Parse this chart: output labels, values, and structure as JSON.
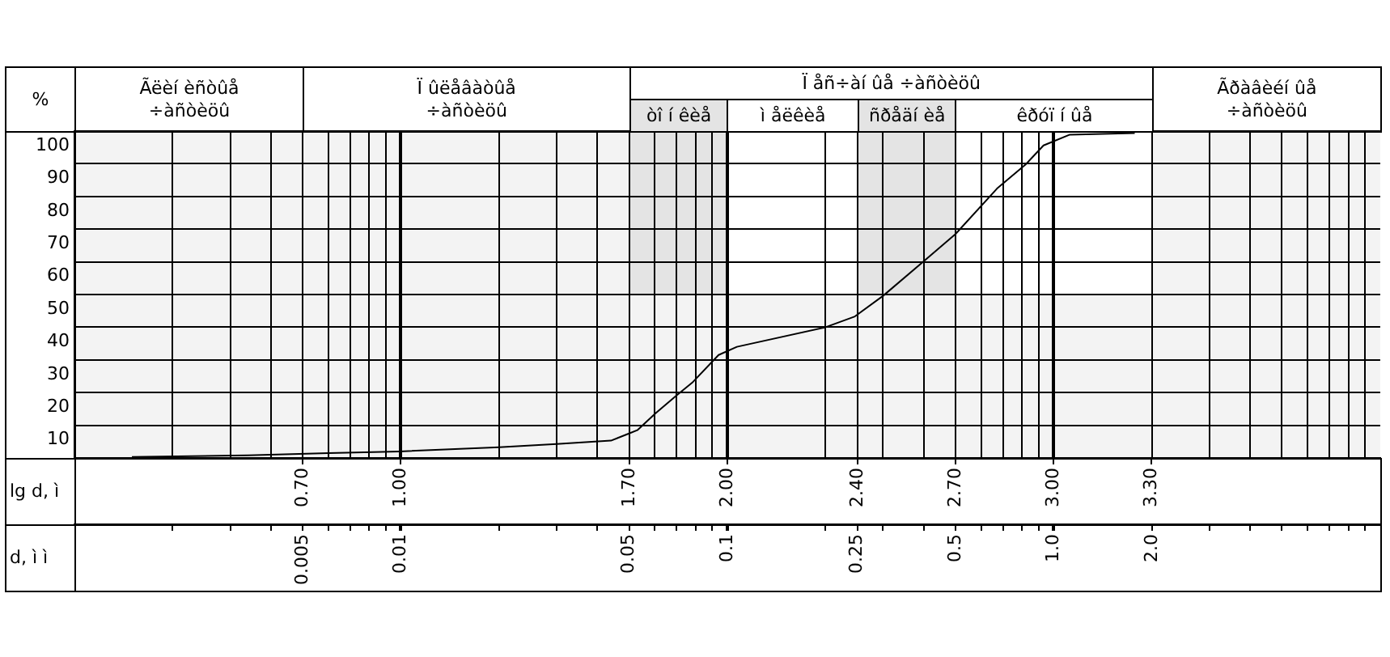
{
  "chart_data": {
    "type": "line",
    "ylabel": "%",
    "xlabel": "d, ì ì",
    "x2label": "lg d, ì",
    "x": [
      0.0015,
      0.0034,
      0.006,
      0.0099,
      0.02,
      0.03,
      0.044,
      0.05,
      0.053,
      0.06,
      0.07,
      0.078,
      0.094,
      0.107,
      0.2,
      0.246,
      0.3,
      0.4,
      0.5,
      0.67,
      0.82,
      0.93,
      1.12,
      1.77
    ],
    "series": [
      {
        "color": "#000000",
        "values": [
          0.3,
          0.8,
          1.5,
          2,
          3.3,
          4.3,
          5.3,
          7.5,
          8.5,
          13.5,
          19.2,
          23,
          31.5,
          34,
          40,
          43.3,
          49.6,
          60.2,
          68.5,
          82.4,
          89.8,
          95.6,
          98.9,
          99.4
        ]
      }
    ],
    "log": "x",
    "xlim": [
      0.001,
      10
    ],
    "xticks": [
      {
        "value": 0.002,
        "label": null
      },
      {
        "value": 0.003,
        "label": null
      },
      {
        "value": 0.004,
        "label": null
      },
      {
        "value": 0.005,
        "label": "0.005"
      },
      {
        "value": 0.006,
        "label": null
      },
      {
        "value": 0.007,
        "label": null
      },
      {
        "value": 0.008,
        "label": null
      },
      {
        "value": 0.009,
        "label": null
      },
      {
        "value": 0.01,
        "label": "0.01"
      },
      {
        "value": 0.02,
        "label": null
      },
      {
        "value": 0.03,
        "label": null
      },
      {
        "value": 0.04,
        "label": null
      },
      {
        "value": 0.05,
        "label": "0.05"
      },
      {
        "value": 0.06,
        "label": null
      },
      {
        "value": 0.07,
        "label": null
      },
      {
        "value": 0.08,
        "label": null
      },
      {
        "value": 0.09,
        "label": null
      },
      {
        "value": 0.1,
        "label": "0.1"
      },
      {
        "value": 0.2,
        "label": null
      },
      {
        "value": 0.25,
        "label": "0.25"
      },
      {
        "value": 0.3,
        "label": null
      },
      {
        "value": 0.4,
        "label": null
      },
      {
        "value": 0.5,
        "label": "0.5"
      },
      {
        "value": 0.6,
        "label": null
      },
      {
        "value": 0.7,
        "label": null
      },
      {
        "value": 0.8,
        "label": null
      },
      {
        "value": 0.9,
        "label": null
      },
      {
        "value": 1,
        "label": "1.0"
      },
      {
        "value": 2,
        "label": "2.0"
      },
      {
        "value": 3,
        "label": null
      },
      {
        "value": 4,
        "label": null
      },
      {
        "value": 5,
        "label": null
      },
      {
        "value": 6,
        "label": null
      },
      {
        "value": 7,
        "label": null
      },
      {
        "value": 8,
        "label": null
      },
      {
        "value": 9,
        "label": null
      }
    ],
    "x2lim": [
      0,
      4
    ],
    "x2ticks": [
      {
        "value": 0.7,
        "label": "0.70"
      },
      {
        "value": 1,
        "label": "1.00"
      },
      {
        "value": 1.7,
        "label": "1.70"
      },
      {
        "value": 2,
        "label": "2.00"
      },
      {
        "value": 2.4,
        "label": "2.40"
      },
      {
        "value": 2.7,
        "label": "2.70"
      },
      {
        "value": 3,
        "label": "3.00"
      },
      {
        "value": 3.3,
        "label": "3.30"
      }
    ],
    "ylim": [
      0,
      100
    ],
    "yticks": [
      {
        "value": 0,
        "label": null
      },
      10,
      20,
      30,
      40,
      50,
      60,
      70,
      80,
      90,
      100
    ],
    "bands": [
      {
        "axis": "x",
        "from": 0.001,
        "to": 0.005,
        "label": "Ãëèí èñòûå\n÷àñòèöû",
        "color": "#f3f3f3"
      },
      {
        "axis": "x",
        "from": 0.005,
        "to": 0.05,
        "label": "Ï ûëåâàòûå\n÷àñòèöû",
        "color": "#f3f3f3"
      },
      {
        "axis": "x",
        "from": 0.05,
        "to": 2,
        "label": "Ï åñ÷àí ûå ÷àñòèöû",
        "color": "#f3f3f3"
      },
      {
        "axis": "x",
        "from": 0.05,
        "to": 0.1,
        "label": "òî í êèå",
        "color": "#e4e4e4"
      },
      {
        "axis": "x",
        "from": 0.1,
        "to": 0.25,
        "label": "ì åëêèå",
        "color": "#ffffff"
      },
      {
        "axis": "x",
        "from": 0.25,
        "to": 0.5,
        "label": "ñðåäí èå",
        "color": "#e4e4e4"
      },
      {
        "axis": "x",
        "from": 0.5,
        "to": 2,
        "label": "êðóï í ûå",
        "color": "#ffffff"
      },
      {
        "axis": "x",
        "from": 2,
        "to": 10,
        "label": "Ãðàâèéí ûå\n÷àñòèöû",
        "color": "#f3f3f3"
      }
    ],
    "grid": true,
    "legend": false,
    "marker": "none",
    "line_style": "solid"
  }
}
